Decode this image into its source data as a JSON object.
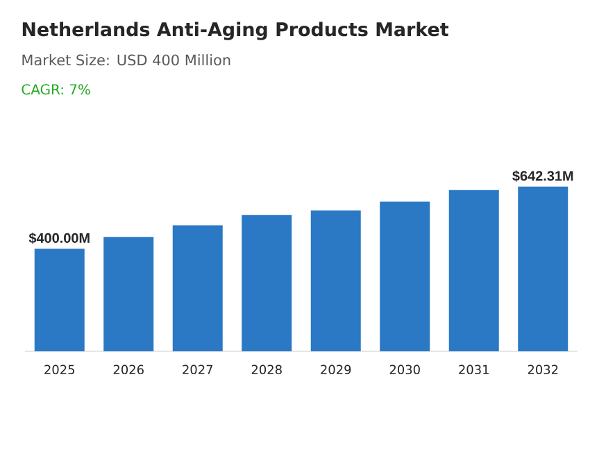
{
  "chart_data": {
    "type": "bar",
    "title": "Netherlands Anti-Aging Products Market",
    "subtitle": "Market Size: USD 400 Million",
    "annotations": [
      "CAGR: 7%"
    ],
    "categories": [
      "2025",
      "2026",
      "2027",
      "2028",
      "2029",
      "2030",
      "2031",
      "2032"
    ],
    "values": [
      400,
      446,
      491,
      531,
      549,
      583,
      629,
      642.31
    ],
    "value_labels": [
      "$400.00M",
      null,
      null,
      null,
      null,
      null,
      null,
      "$642.31M"
    ],
    "color": "#2b78c5"
  }
}
